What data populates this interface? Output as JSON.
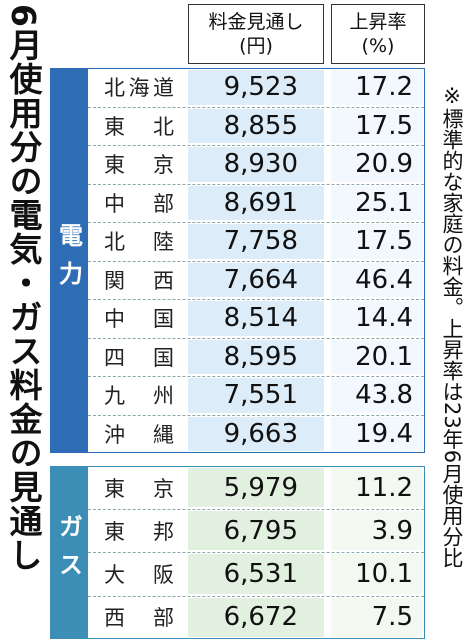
{
  "title": "6月使用分の電気・ガス料金の見通し",
  "note": "※標準的な家庭の料金。上昇率は23年6月使用分比",
  "table": {
    "headers": [
      [
        "料金見通し",
        "(円)"
      ],
      [
        "上昇率",
        "(%)"
      ]
    ],
    "sections": [
      {
        "label": "電力",
        "rows": [
          [
            "北海道",
            "9,523",
            "17.2"
          ],
          [
            "東北",
            "8,855",
            "17.5"
          ],
          [
            "東京",
            "8,930",
            "20.9"
          ],
          [
            "中部",
            "8,691",
            "25.1"
          ],
          [
            "北陸",
            "7,758",
            "17.5"
          ],
          [
            "関西",
            "7,664",
            "46.4"
          ],
          [
            "中国",
            "8,514",
            "14.4"
          ],
          [
            "四国",
            "8,595",
            "20.1"
          ],
          [
            "九州",
            "7,551",
            "43.8"
          ],
          [
            "沖縄",
            "9,663",
            "19.4"
          ]
        ]
      },
      {
        "label": "ガス",
        "rows": [
          [
            "東京",
            "5,979",
            "11.2"
          ],
          [
            "東邦",
            "6,795",
            "3.9"
          ],
          [
            "大阪",
            "6,531",
            "10.1"
          ],
          [
            "西部",
            "6,672",
            "7.5"
          ]
        ]
      }
    ]
  }
}
